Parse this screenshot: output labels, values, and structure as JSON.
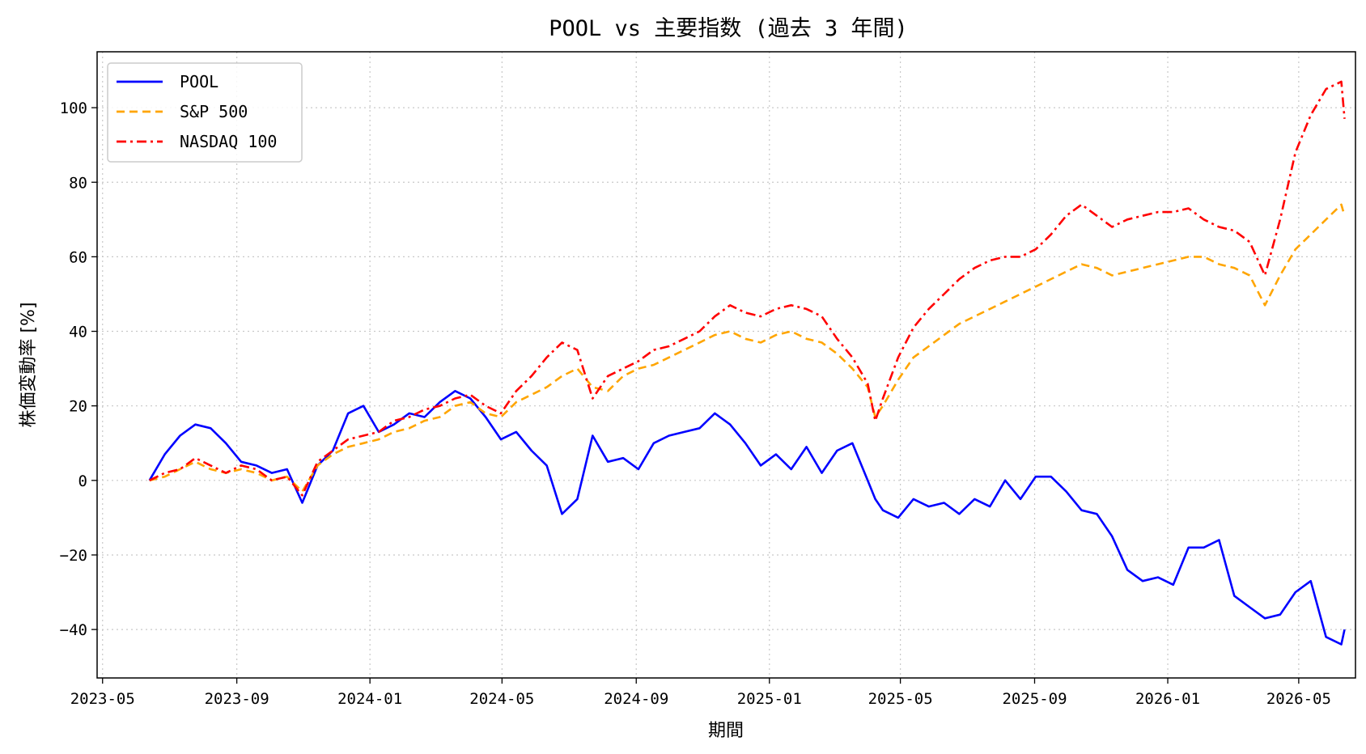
{
  "chart_data": {
    "type": "line",
    "title": "POOL vs 主要指数 (過去 3 年間)",
    "xlabel": "期間",
    "ylabel": "株価変動率 [%]",
    "xlim": [
      "2023-04-26",
      "2026-06-22"
    ],
    "ylim": [
      -53,
      115
    ],
    "grid": true,
    "legend_position": "top-left",
    "x_ticks": [
      "2023-05",
      "2023-09",
      "2024-01",
      "2024-05",
      "2024-09",
      "2025-01",
      "2025-05",
      "2025-09",
      "2026-01",
      "2026-05"
    ],
    "y_ticks": [
      -40,
      -20,
      0,
      20,
      40,
      60,
      80,
      100
    ],
    "x": [
      "2023-06-13",
      "2023-06-27",
      "2023-07-11",
      "2023-07-25",
      "2023-08-08",
      "2023-08-22",
      "2023-09-05",
      "2023-09-19",
      "2023-10-03",
      "2023-10-17",
      "2023-10-31",
      "2023-11-14",
      "2023-11-28",
      "2023-12-12",
      "2023-12-26",
      "2024-01-09",
      "2024-01-23",
      "2024-02-06",
      "2024-02-20",
      "2024-03-05",
      "2024-03-19",
      "2024-04-02",
      "2024-04-16",
      "2024-04-30",
      "2024-05-14",
      "2024-05-28",
      "2024-06-11",
      "2024-06-25",
      "2024-07-09",
      "2024-07-23",
      "2024-08-06",
      "2024-08-20",
      "2024-09-03",
      "2024-09-17",
      "2024-10-01",
      "2024-10-15",
      "2024-10-29",
      "2024-11-12",
      "2024-11-26",
      "2024-12-10",
      "2024-12-24",
      "2025-01-07",
      "2025-01-21",
      "2025-02-04",
      "2025-02-18",
      "2025-03-04",
      "2025-03-18",
      "2025-04-01",
      "2025-04-08",
      "2025-04-15",
      "2025-04-29",
      "2025-05-13",
      "2025-05-27",
      "2025-06-10",
      "2025-06-24",
      "2025-07-08",
      "2025-07-22",
      "2025-08-05",
      "2025-08-19",
      "2025-09-02",
      "2025-09-16",
      "2025-09-30",
      "2025-10-14",
      "2025-10-28",
      "2025-11-11",
      "2025-11-25",
      "2025-12-09",
      "2025-12-23",
      "2026-01-06",
      "2026-01-20",
      "2026-02-03",
      "2026-02-17",
      "2026-03-03",
      "2026-03-17",
      "2026-03-31",
      "2026-04-14",
      "2026-04-28",
      "2026-05-12",
      "2026-05-26",
      "2026-06-09",
      "2026-06-12"
    ],
    "series": [
      {
        "name": "POOL",
        "color": "#0000ff",
        "style": "solid",
        "values": [
          0,
          7,
          12,
          15,
          14,
          10,
          5,
          4,
          2,
          3,
          -6,
          4,
          8,
          18,
          20,
          13,
          15,
          18,
          17,
          21,
          24,
          22,
          17,
          11,
          13,
          8,
          4,
          -9,
          -5,
          12,
          5,
          6,
          3,
          10,
          12,
          13,
          14,
          18,
          15,
          10,
          4,
          7,
          3,
          9,
          2,
          8,
          10,
          0,
          -5,
          -8,
          -10,
          -5,
          -7,
          -6,
          -9,
          -5,
          -7,
          0,
          -5,
          1,
          1,
          -3,
          -8,
          -9,
          -15,
          -24,
          -27,
          -26,
          -28,
          -18,
          -18,
          -16,
          -31,
          -34,
          -37,
          -36,
          -30,
          -27,
          -42,
          -44,
          -40
        ]
      },
      {
        "name": "S&P 500",
        "color": "#ffa500",
        "style": "dashed",
        "values": [
          0,
          1,
          3,
          5,
          3,
          2,
          3,
          2,
          0,
          1,
          -3,
          4,
          7,
          9,
          10,
          11,
          13,
          14,
          16,
          17,
          20,
          21,
          18,
          17,
          21,
          23,
          25,
          28,
          30,
          25,
          24,
          28,
          30,
          31,
          33,
          35,
          37,
          39,
          40,
          38,
          37,
          39,
          40,
          38,
          37,
          34,
          30,
          25,
          17,
          20,
          27,
          33,
          36,
          39,
          42,
          44,
          46,
          48,
          50,
          52,
          54,
          56,
          58,
          57,
          55,
          56,
          57,
          58,
          59,
          60,
          60,
          58,
          57,
          55,
          47,
          55,
          62,
          66,
          70,
          74,
          71
        ]
      },
      {
        "name": "NASDAQ 100",
        "color": "#ff0000",
        "style": "dashdot",
        "values": [
          0,
          2,
          3,
          6,
          4,
          2,
          4,
          3,
          0,
          1,
          -4,
          5,
          8,
          11,
          12,
          13,
          16,
          17,
          19,
          20,
          22,
          23,
          20,
          18,
          24,
          28,
          33,
          37,
          35,
          22,
          28,
          30,
          32,
          35,
          36,
          38,
          40,
          44,
          47,
          45,
          44,
          46,
          47,
          46,
          44,
          38,
          33,
          26,
          16,
          22,
          33,
          41,
          46,
          50,
          54,
          57,
          59,
          60,
          60,
          62,
          66,
          71,
          74,
          71,
          68,
          70,
          71,
          72,
          72,
          73,
          70,
          68,
          67,
          64,
          55,
          70,
          88,
          98,
          105,
          107,
          97
        ]
      }
    ]
  }
}
